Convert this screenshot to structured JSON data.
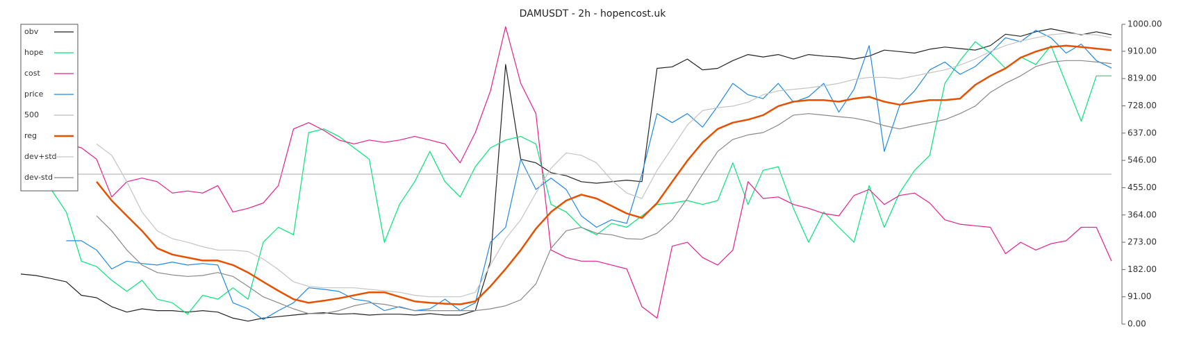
{
  "chart_data": {
    "type": "line",
    "title": "DAMUSDT - 2h - hopencost.uk",
    "ylim": [
      0,
      1000
    ],
    "yticks": [
      {
        "value": 0,
        "label": "0.00"
      },
      {
        "value": 91,
        "label": "91.00"
      },
      {
        "value": 182,
        "label": "182.00"
      },
      {
        "value": 273,
        "label": "273.00"
      },
      {
        "value": 364,
        "label": "364.00"
      },
      {
        "value": 455,
        "label": "455.00"
      },
      {
        "value": 546,
        "label": "546.00"
      },
      {
        "value": 637,
        "label": "637.00"
      },
      {
        "value": 728,
        "label": "728.00"
      },
      {
        "value": 819,
        "label": "819.00"
      },
      {
        "value": 910,
        "label": "910.00"
      },
      {
        "value": 1000,
        "label": "1000.00"
      }
    ],
    "legend": "upper left",
    "series": [
      {
        "name": "obv",
        "color": "#222222",
        "linewidth": 1.2,
        "values": [
          167,
          162,
          152,
          141,
          96,
          88,
          58,
          40,
          51,
          45,
          45,
          40,
          45,
          40,
          20,
          10,
          20,
          25,
          30,
          35,
          38,
          33,
          35,
          30,
          33,
          33,
          30,
          35,
          30,
          30,
          45,
          210,
          866,
          550,
          538,
          505,
          495,
          475,
          470,
          475,
          480,
          475,
          853,
          858,
          884,
          848,
          853,
          879,
          899,
          891,
          899,
          884,
          899,
          894,
          891,
          884,
          894,
          914,
          909,
          904,
          917,
          924,
          919,
          914,
          929,
          967,
          960,
          975,
          985,
          975,
          965,
          975,
          965
        ]
      },
      {
        "name": "hope",
        "color": "#00e676",
        "linewidth": 1.2,
        "values": [
          525,
          500,
          449,
          374,
          210,
          192,
          146,
          109,
          146,
          83,
          71,
          33,
          96,
          83,
          121,
          83,
          273,
          323,
          298,
          639,
          651,
          626,
          588,
          550,
          273,
          399,
          475,
          576,
          475,
          424,
          525,
          588,
          614,
          626,
          601,
          399,
          374,
          323,
          298,
          336,
          323,
          361,
          399,
          404,
          412,
          399,
          412,
          538,
          399,
          513,
          525,
          386,
          273,
          374,
          323,
          273,
          462,
          323,
          437,
          513,
          563,
          803,
          879,
          942,
          904,
          853,
          891,
          866,
          929,
          803,
          677,
          828,
          828
        ]
      },
      {
        "name": "cost",
        "color": "#e91e8c",
        "linewidth": 1.2,
        "values": [
          614,
          601,
          601,
          601,
          588,
          550,
          424,
          475,
          487,
          475,
          437,
          444,
          437,
          462,
          374,
          386,
          404,
          462,
          651,
          672,
          646,
          614,
          601,
          614,
          606,
          614,
          626,
          614,
          601,
          538,
          639,
          778,
          992,
          803,
          702,
          247,
          222,
          210,
          210,
          197,
          184,
          58,
          20,
          260,
          273,
          222,
          197,
          247,
          475,
          419,
          424,
          399,
          386,
          369,
          361,
          429,
          449,
          399,
          429,
          437,
          404,
          348,
          333,
          328,
          323,
          235,
          273,
          247,
          268,
          278,
          323,
          323,
          210
        ]
      },
      {
        "name": "price",
        "color": "#1e88e5",
        "linewidth": 1.2,
        "values": [
          null,
          null,
          null,
          278,
          278,
          247,
          184,
          210,
          202,
          197,
          207,
          197,
          202,
          197,
          71,
          51,
          15,
          45,
          71,
          121,
          116,
          109,
          83,
          76,
          45,
          58,
          45,
          51,
          83,
          45,
          71,
          273,
          323,
          550,
          449,
          487,
          449,
          361,
          323,
          348,
          336,
          500,
          702,
          672,
          702,
          657,
          727,
          803,
          765,
          752,
          803,
          740,
          758,
          803,
          707,
          783,
          929,
          576,
          727,
          778,
          848,
          874,
          833,
          859,
          904,
          955,
          942,
          980,
          955,
          904,
          934,
          879,
          854
        ]
      },
      {
        "name": "500",
        "color": "#bbbbbb",
        "linewidth": 1.2,
        "values": [
          500,
          500,
          500,
          500,
          500,
          500,
          500,
          500,
          500,
          500,
          500,
          500,
          500,
          500,
          500,
          500,
          500,
          500,
          500,
          500,
          500,
          500,
          500,
          500,
          500,
          500,
          500,
          500,
          500,
          500,
          500,
          500,
          500,
          500,
          500,
          500,
          500,
          500,
          500,
          500,
          500,
          500,
          500,
          500,
          500,
          500,
          500,
          500,
          500,
          500,
          500,
          500,
          500,
          500,
          500,
          500,
          500,
          500,
          500,
          500,
          500,
          500,
          500,
          500,
          500,
          500,
          500,
          500,
          500,
          500,
          500,
          500,
          500
        ]
      },
      {
        "name": "reg",
        "color": "#e65100",
        "linewidth": 2.5,
        "values": [
          null,
          null,
          null,
          null,
          null,
          475,
          412,
          361,
          311,
          253,
          232,
          222,
          212,
          212,
          197,
          172,
          141,
          111,
          83,
          71,
          78,
          86,
          96,
          106,
          106,
          91,
          76,
          71,
          68,
          66,
          76,
          126,
          184,
          247,
          318,
          374,
          412,
          432,
          419,
          394,
          369,
          354,
          404,
          475,
          545,
          606,
          651,
          672,
          682,
          697,
          727,
          742,
          747,
          747,
          742,
          752,
          758,
          742,
          732,
          740,
          747,
          747,
          752,
          798,
          828,
          853,
          889,
          909,
          924,
          929,
          924,
          919,
          914
        ]
      },
      {
        "name": "dev+std",
        "color": "#c4c4c4",
        "linewidth": 1.2,
        "values": [
          null,
          null,
          null,
          null,
          null,
          601,
          563,
          475,
          374,
          311,
          285,
          273,
          258,
          247,
          247,
          242,
          217,
          182,
          141,
          126,
          121,
          121,
          121,
          116,
          111,
          106,
          96,
          91,
          91,
          91,
          106,
          197,
          285,
          348,
          437,
          520,
          571,
          563,
          538,
          480,
          437,
          419,
          513,
          588,
          664,
          712,
          722,
          727,
          740,
          765,
          778,
          783,
          788,
          795,
          803,
          816,
          823,
          823,
          818,
          828,
          838,
          848,
          864,
          884,
          909,
          929,
          944,
          955,
          965,
          970,
          967,
          965,
          955
        ]
      },
      {
        "name": "dev-std",
        "color": "#888888",
        "linewidth": 1.2,
        "values": [
          null,
          null,
          null,
          null,
          null,
          361,
          311,
          247,
          197,
          172,
          164,
          159,
          162,
          172,
          159,
          126,
          91,
          71,
          51,
          35,
          35,
          45,
          61,
          71,
          66,
          56,
          45,
          45,
          45,
          45,
          45,
          51,
          61,
          81,
          134,
          253,
          311,
          323,
          303,
          298,
          285,
          283,
          303,
          348,
          419,
          500,
          576,
          616,
          631,
          639,
          664,
          697,
          702,
          697,
          692,
          687,
          677,
          662,
          651,
          662,
          672,
          682,
          702,
          727,
          773,
          803,
          828,
          859,
          874,
          879,
          879,
          874,
          869
        ]
      }
    ]
  }
}
